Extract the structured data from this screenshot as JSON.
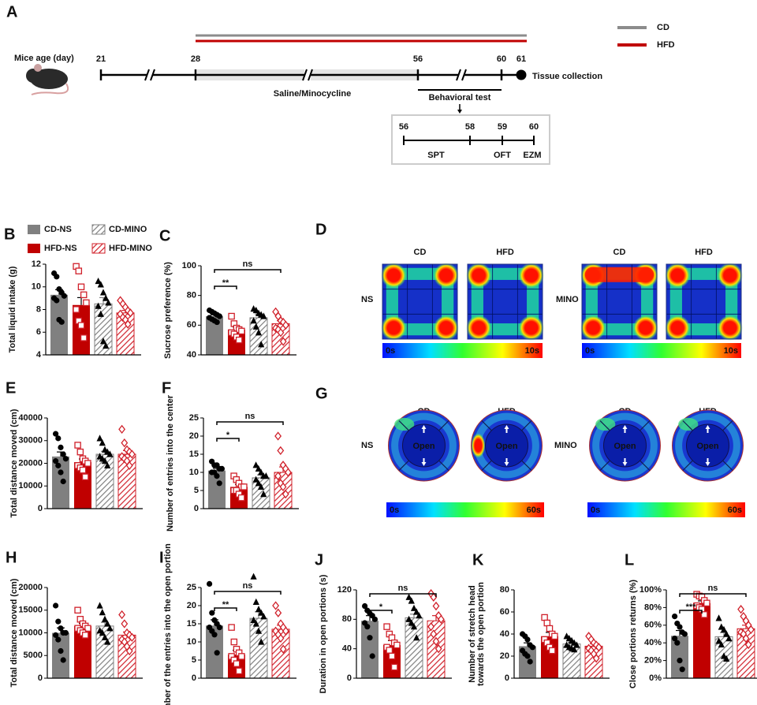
{
  "timeline": {
    "panel": "A",
    "age_label": "Mice age (day)",
    "days": [
      21,
      28,
      56,
      60,
      61
    ],
    "endpoint": "Tissue collection",
    "treatment": "Saline/Minocycline",
    "test_label": "Behavioral test",
    "test_days": [
      56,
      58,
      59,
      60
    ],
    "tests": [
      "SPT",
      "OFT",
      "EZM"
    ]
  },
  "diet_legend": [
    {
      "name": "CD",
      "color": "#8c8c8c"
    },
    {
      "name": "HFD",
      "color": "#c00000"
    }
  ],
  "groups": [
    {
      "name": "CD-NS",
      "color": "#808080",
      "hatch": false,
      "marker": "circle",
      "marker_color": "#000000"
    },
    {
      "name": "HFD-NS",
      "color": "#c00000",
      "hatch": false,
      "marker": "square",
      "marker_color": "#d0202a"
    },
    {
      "name": "CD-MINO",
      "color": "#808080",
      "hatch": true,
      "marker": "triangle",
      "marker_color": "#000000"
    },
    {
      "name": "HFD-MINO",
      "color": "#d0202a",
      "hatch": true,
      "marker": "diamond",
      "marker_color": "#d0202a"
    }
  ],
  "chart_data": [
    {
      "type": "bar",
      "panel": "B",
      "ylabel": "Total liquid intake (g)",
      "ylim": [
        4,
        12
      ],
      "yticks": [
        4,
        6,
        8,
        10,
        12
      ],
      "values": [
        9.3,
        8.4,
        8.5,
        7.7
      ],
      "errors": [
        0.45,
        0.65,
        0.55,
        0.22
      ],
      "points": [
        [
          11.2,
          10.9,
          9.8,
          9.5,
          9.2,
          9.0,
          8.8,
          7.1,
          6.9
        ],
        [
          11.8,
          11.4,
          10.0,
          9.3,
          8.6,
          8.0,
          7.0,
          6.6,
          5.5
        ],
        [
          10.5,
          10.2,
          9.5,
          9.0,
          8.6,
          8.3,
          7.6,
          5.2,
          4.8
        ],
        [
          8.8,
          8.5,
          8.2,
          7.9,
          7.7,
          7.6,
          7.3,
          7.1,
          6.7
        ]
      ]
    },
    {
      "type": "bar",
      "panel": "C",
      "ylabel": "Sucrose preference (%)",
      "ylim": [
        40,
        100
      ],
      "yticks": [
        40,
        60,
        80,
        100
      ],
      "values": [
        66,
        57,
        65,
        61
      ],
      "errors": [
        1.0,
        1.8,
        2.5,
        2.0
      ],
      "significance": [
        null,
        "**",
        null,
        "ns"
      ],
      "points": [
        [
          70,
          69,
          68,
          67,
          66,
          65,
          64,
          63,
          62
        ],
        [
          66,
          61,
          58,
          57,
          56,
          55,
          54,
          52,
          50
        ],
        [
          71,
          70,
          68,
          67,
          66,
          63,
          59,
          55,
          47
        ],
        [
          69,
          66,
          63,
          62,
          60,
          58,
          57,
          55,
          49
        ]
      ]
    },
    {
      "type": "bar",
      "panel": "E",
      "ylabel": "Total distance moved (cm)",
      "ylim": [
        0,
        40000
      ],
      "yticks": [
        0,
        10000,
        20000,
        30000,
        40000
      ],
      "values": [
        23000,
        20500,
        24000,
        24000
      ],
      "errors": [
        2000,
        1400,
        1300,
        1600
      ],
      "points": [
        [
          33000,
          31000,
          27000,
          24000,
          22000,
          21000,
          19000,
          16000,
          12000
        ],
        [
          28000,
          25000,
          22000,
          21000,
          20000,
          19000,
          18000,
          17000,
          14000
        ],
        [
          31000,
          29000,
          26000,
          25000,
          24000,
          23000,
          22000,
          21000,
          19000
        ],
        [
          35000,
          29000,
          26000,
          25000,
          24000,
          23000,
          22000,
          21000,
          19000
        ]
      ]
    },
    {
      "type": "bar",
      "panel": "F",
      "ylabel": "Number of entries into the center",
      "ylim": [
        0,
        25
      ],
      "yticks": [
        0,
        5,
        10,
        15,
        20,
        25
      ],
      "values": [
        10.5,
        6,
        8.5,
        10
      ],
      "errors": [
        0.6,
        0.7,
        0.8,
        1.5
      ],
      "significance": [
        null,
        "*",
        null,
        "ns"
      ],
      "points": [
        [
          13,
          12,
          12,
          11,
          11,
          10,
          10,
          9,
          7
        ],
        [
          9,
          8,
          7,
          6,
          6,
          5,
          5,
          4,
          3
        ],
        [
          12,
          11,
          10,
          9,
          9,
          8,
          7,
          6,
          4
        ],
        [
          20,
          16,
          12,
          11,
          10,
          9,
          7,
          6,
          4
        ]
      ]
    },
    {
      "type": "bar",
      "panel": "H",
      "ylabel": "Total distance moved (cm)",
      "ylim": [
        0,
        20000
      ],
      "yticks": [
        0,
        5000,
        10000,
        15000,
        20000
      ],
      "values": [
        10000,
        11500,
        11500,
        9500
      ],
      "errors": [
        1100,
        600,
        800,
        700
      ],
      "points": [
        [
          16000,
          12500,
          11000,
          10000,
          10000,
          9500,
          8500,
          6000,
          4000
        ],
        [
          15000,
          13000,
          12000,
          11500,
          11000,
          11000,
          10500,
          10000,
          9500
        ],
        [
          16000,
          14500,
          13000,
          12000,
          11000,
          10500,
          10000,
          9000,
          8000
        ],
        [
          14000,
          12000,
          10000,
          9500,
          9000,
          8500,
          8000,
          7000,
          6000
        ]
      ]
    },
    {
      "type": "bar",
      "panel": "I",
      "ylabel": "Number of the entries into the open portion",
      "ylim": [
        0,
        25
      ],
      "yticks": [
        0,
        5,
        10,
        15,
        20,
        25
      ],
      "values": [
        14.5,
        6.5,
        16.5,
        13.5
      ],
      "errors": [
        1.6,
        1.2,
        1.8,
        1.1
      ],
      "significance": [
        null,
        "**",
        null,
        "ns"
      ],
      "points": [
        [
          26,
          18,
          16,
          15,
          14,
          14,
          13,
          12,
          7
        ],
        [
          14,
          10,
          8,
          7,
          6,
          6,
          5,
          4,
          2
        ],
        [
          28,
          21,
          19,
          18,
          17,
          16,
          15,
          13,
          10
        ],
        [
          20,
          18,
          15,
          14,
          13,
          13,
          12,
          11,
          8
        ]
      ]
    },
    {
      "type": "bar",
      "panel": "J",
      "ylabel": "Duration in open portions (s)",
      "ylim": [
        0,
        120
      ],
      "yticks": [
        0,
        40,
        80,
        120
      ],
      "values": [
        78,
        45,
        82,
        78
      ],
      "errors": [
        7,
        6,
        5,
        7
      ],
      "significance": [
        null,
        "*",
        null,
        "ns"
      ],
      "points": [
        [
          98,
          92,
          88,
          85,
          80,
          75,
          70,
          55,
          30
        ],
        [
          70,
          60,
          55,
          48,
          45,
          42,
          38,
          30,
          15
        ],
        [
          110,
          105,
          95,
          90,
          85,
          80,
          75,
          70,
          55
        ],
        [
          115,
          110,
          98,
          85,
          80,
          70,
          60,
          50,
          40
        ]
      ]
    },
    {
      "type": "bar",
      "panel": "K",
      "ylabel": [
        "Number of stretch head",
        "towards the open portion"
      ],
      "ylim": [
        0,
        80
      ],
      "yticks": [
        0,
        20,
        40,
        60,
        80
      ],
      "values": [
        29,
        38,
        31,
        29
      ],
      "errors": [
        3,
        3.5,
        1.5,
        2.2
      ],
      "points": [
        [
          40,
          38,
          35,
          30,
          28,
          25,
          22,
          20,
          15
        ],
        [
          55,
          50,
          45,
          40,
          38,
          35,
          32,
          28,
          25
        ],
        [
          38,
          36,
          34,
          32,
          30,
          30,
          28,
          27,
          26
        ],
        [
          38,
          35,
          32,
          30,
          28,
          27,
          25,
          22,
          18
        ]
      ]
    },
    {
      "type": "bar",
      "panel": "L",
      "ylabel": "Close portions returns (%)",
      "ylim": [
        0,
        100
      ],
      "yticks": [
        {
          "value": 0,
          "label": "0%"
        },
        {
          "value": 20,
          "label": "20%"
        },
        {
          "value": 40,
          "label": "40%"
        },
        {
          "value": 60,
          "label": "60%"
        },
        {
          "value": 80,
          "label": "80%"
        },
        {
          "value": 100,
          "label": "100%"
        }
      ],
      "values": [
        48,
        85,
        47,
        56
      ],
      "errors": [
        6,
        2.5,
        4.5,
        4
      ],
      "significance": [
        null,
        "***",
        null,
        "ns"
      ],
      "points": [
        [
          70,
          62,
          58,
          52,
          50,
          45,
          40,
          20,
          10
        ],
        [
          95,
          93,
          92,
          88,
          85,
          82,
          80,
          78,
          72
        ],
        [
          68,
          58,
          55,
          50,
          45,
          42,
          38,
          25,
          22
        ],
        [
          78,
          70,
          65,
          60,
          55,
          52,
          50,
          45,
          38
        ]
      ]
    }
  ],
  "heatmaps": [
    {
      "panel": "D",
      "columns": [
        "CD",
        "HFD"
      ],
      "rows": [
        "NS",
        "MINO"
      ],
      "scale": [
        "0s",
        "10s"
      ]
    },
    {
      "panel": "G",
      "columns": [
        "CD",
        "HFD"
      ],
      "rows": [
        "NS",
        "MINO"
      ],
      "scale": [
        "0s",
        "60s"
      ],
      "center_label": "Open"
    }
  ]
}
